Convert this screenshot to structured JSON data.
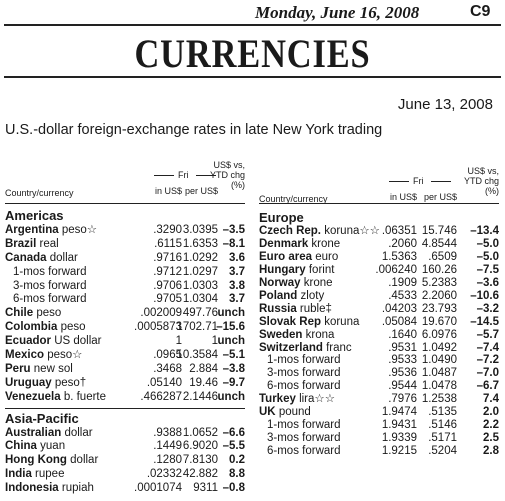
{
  "header": {
    "date": "Monday, June 16, 2008",
    "page": "C9"
  },
  "title": "CURRENCIES",
  "as_of": "June 13, 2008",
  "subtitle": "U.S.-dollar foreign-exchange rates in late New York trading",
  "columns": {
    "country": "Country/currency",
    "fri": "Fri",
    "in_usd": "in US$",
    "per_usd": "per US$",
    "chg": [
      "US$ vs,",
      "YTD chg",
      "(%)"
    ]
  },
  "sections": [
    {
      "name": "Americas",
      "rows": [
        {
          "country": "Argentina",
          "currency": "peso☆",
          "in_usd": ".3290",
          "per_usd": "3.0395",
          "chg": "–3.5"
        },
        {
          "country": "Brazil",
          "currency": "real",
          "in_usd": ".6115",
          "per_usd": "1.6353",
          "chg": "–8.1"
        },
        {
          "country": "Canada",
          "currency": "dollar",
          "in_usd": ".9716",
          "per_usd": "1.0292",
          "chg": "3.6"
        },
        {
          "name": "1-mos forward",
          "in_usd": ".9712",
          "per_usd": "1.0297",
          "chg": "3.7"
        },
        {
          "name": "3-mos forward",
          "in_usd": ".9706",
          "per_usd": "1.0303",
          "chg": "3.8"
        },
        {
          "name": "6-mos forward",
          "in_usd": ".9705",
          "per_usd": "1.0304",
          "chg": "3.7"
        },
        {
          "country": "Chile",
          "currency": "peso",
          "in_usd": ".002009",
          "per_usd": "497.76",
          "chg": "unch"
        },
        {
          "country": "Colombia",
          "currency": "peso",
          "in_usd": ".0005873",
          "per_usd": "1702.71",
          "chg": "–15.6"
        },
        {
          "country": "Ecuador",
          "currency": "US dollar",
          "in_usd": "1",
          "per_usd": "1",
          "chg": "unch"
        },
        {
          "country": "Mexico",
          "currency": "peso☆",
          "in_usd": ".0965",
          "per_usd": "10.3584",
          "chg": "–5.1"
        },
        {
          "country": "Peru",
          "currency": "new sol",
          "in_usd": ".3468",
          "per_usd": "2.884",
          "chg": "–3.8"
        },
        {
          "country": "Uruguay",
          "currency": "peso†",
          "in_usd": ".05140",
          "per_usd": "19.46",
          "chg": "–9.7"
        },
        {
          "country": "Venezuela",
          "currency": "b. fuerte",
          "in_usd": ".466287",
          "per_usd": "2.1446",
          "chg": "unch"
        }
      ]
    },
    {
      "name": "Asia-Pacific",
      "rows": [
        {
          "country": "Australian",
          "currency": "dollar",
          "in_usd": ".9388",
          "per_usd": "1.0652",
          "chg": "–6.6"
        },
        {
          "country": "China",
          "currency": "yuan",
          "in_usd": ".1449",
          "per_usd": "6.9020",
          "chg": "–5.5"
        },
        {
          "country": "Hong Kong",
          "currency": "dollar",
          "in_usd": ".1280",
          "per_usd": "7.8130",
          "chg": "0.2"
        },
        {
          "country": "India",
          "currency": "rupee",
          "in_usd": ".02332",
          "per_usd": "42.882",
          "chg": "8.8"
        },
        {
          "country": "Indonesia",
          "currency": "rupiah",
          "in_usd": ".0001074",
          "per_usd": "9311",
          "chg": "–0.8"
        }
      ]
    },
    {
      "name": "Europe",
      "rows": [
        {
          "country": "Czech Rep.",
          "currency": "koruna☆☆",
          "in_usd": ".06351",
          "per_usd": "15.746",
          "chg": "–13.4"
        },
        {
          "country": "Denmark",
          "currency": "krone",
          "in_usd": ".2060",
          "per_usd": "4.8544",
          "chg": "–5.0"
        },
        {
          "country": "Euro area",
          "currency": "euro",
          "in_usd": "1.5363",
          "per_usd": ".6509",
          "chg": "–5.0"
        },
        {
          "country": "Hungary",
          "currency": "forint",
          "in_usd": ".006240",
          "per_usd": "160.26",
          "chg": "–7.5"
        },
        {
          "country": "Norway",
          "currency": "krone",
          "in_usd": ".1909",
          "per_usd": "5.2383",
          "chg": "–3.6"
        },
        {
          "country": "Poland",
          "currency": "zloty",
          "in_usd": ".4533",
          "per_usd": "2.2060",
          "chg": "–10.6"
        },
        {
          "country": "Russia",
          "currency": "ruble‡",
          "in_usd": ".04203",
          "per_usd": "23.793",
          "chg": "–3.2"
        },
        {
          "country": "Slovak Rep",
          "currency": "koruna",
          "in_usd": ".05084",
          "per_usd": "19.670",
          "chg": "–14.5"
        },
        {
          "country": "Sweden",
          "currency": "krona",
          "in_usd": ".1640",
          "per_usd": "6.0976",
          "chg": "–5.7"
        },
        {
          "country": "Switzerland",
          "currency": "franc",
          "in_usd": ".9531",
          "per_usd": "1.0492",
          "chg": "–7.4"
        },
        {
          "name": "1-mos forward",
          "in_usd": ".9533",
          "per_usd": "1.0490",
          "chg": "–7.2"
        },
        {
          "name": "3-mos forward",
          "in_usd": ".9536",
          "per_usd": "1.0487",
          "chg": "–7.0"
        },
        {
          "name": "6-mos forward",
          "in_usd": ".9544",
          "per_usd": "1.0478",
          "chg": "–6.7"
        },
        {
          "country": "Turkey",
          "currency": "lira☆☆",
          "in_usd": ".7976",
          "per_usd": "1.2538",
          "chg": "7.4"
        },
        {
          "country": "UK",
          "currency": "pound",
          "in_usd": "1.9474",
          "per_usd": ".5135",
          "chg": "2.0"
        },
        {
          "name": "1-mos forward",
          "in_usd": "1.9431",
          "per_usd": ".5146",
          "chg": "2.2"
        },
        {
          "name": "3-mos forward",
          "in_usd": "1.9339",
          "per_usd": ".5171",
          "chg": "2.5"
        },
        {
          "name": "6-mos forward",
          "in_usd": "1.9215",
          "per_usd": ".5204",
          "chg": "2.8"
        }
      ]
    }
  ]
}
